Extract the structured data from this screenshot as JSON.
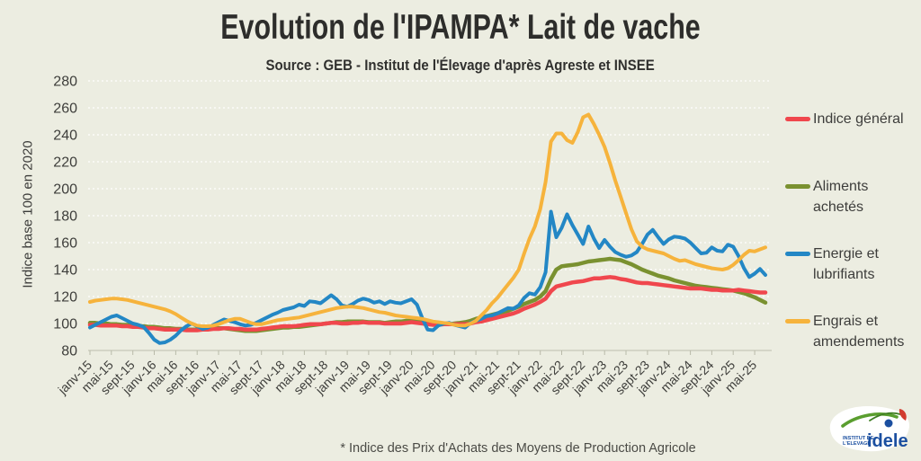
{
  "colors": {
    "background": "#ecede1",
    "text": "#2d2d2b",
    "grid": "#ffffff",
    "axis": "#c6c7b8"
  },
  "header": {
    "title": "Evolution de l'IPAMPA* Lait de vache",
    "subtitle": "Source : GEB - Institut de l'Élevage d'après Agreste et INSEE"
  },
  "footnote": "* Indice des Prix d'Achats des Moyens de Production Agricole",
  "logo": {
    "line1": "INSTITUT DE",
    "line2": "L'ELEVAGE",
    "brand": "idele"
  },
  "chart_data": {
    "type": "line",
    "title": "Evolution de l'IPAMPA* Lait de vache",
    "xlabel": "",
    "ylabel": "Indice base 100 en 2020",
    "ylim": [
      80,
      280
    ],
    "y_ticks": [
      80,
      100,
      120,
      140,
      160,
      180,
      200,
      220,
      240,
      260,
      280
    ],
    "grid": "horizontal-dotted",
    "grid_color": "#ffffff",
    "legend_position": "right",
    "x_resolution": "monthly",
    "x_start": "janv-15",
    "x_end": "juil-25",
    "x_tick_every": 4,
    "x_tick_labels": [
      "janv-15",
      "mai-15",
      "sept-15",
      "janv-16",
      "mai-16",
      "sept-16",
      "janv-17",
      "mai-17",
      "sept-17",
      "janv-18",
      "mai-18",
      "sept-18",
      "janv-19",
      "mai-19",
      "sept-19",
      "janv-20",
      "mai-20",
      "sept-20",
      "janv-21",
      "mai-21",
      "sept-21",
      "janv-22",
      "mai-22",
      "sept-22",
      "janv-23",
      "mai-23",
      "sept-23",
      "janv-24",
      "mai-24",
      "sept-24",
      "janv-25",
      "mai-25"
    ],
    "series": [
      {
        "name": "Indice général",
        "color": "#f0474d",
        "values": [
          99,
          99,
          98.5,
          98.5,
          98.5,
          98.5,
          98,
          98,
          97.5,
          97.5,
          97,
          96.5,
          96.5,
          96,
          95.5,
          95.5,
          95.5,
          95.5,
          95,
          95,
          95,
          95.5,
          95.5,
          96,
          96,
          96.5,
          96.5,
          96,
          96,
          95.5,
          95.5,
          95.5,
          96,
          96.5,
          97,
          97.5,
          98,
          98,
          98,
          98.5,
          99,
          99.5,
          99.5,
          99.5,
          100,
          100.5,
          100.5,
          100,
          100,
          100.5,
          100.5,
          101,
          100.5,
          100.5,
          100.5,
          100,
          100,
          100,
          100,
          100.5,
          101,
          100.5,
          100,
          99.5,
          99,
          99,
          99.5,
          99.5,
          99.5,
          99.5,
          99.5,
          100,
          101,
          101.5,
          102.5,
          103.5,
          104.5,
          105.5,
          106.5,
          107.5,
          109,
          111,
          112.5,
          114,
          116,
          118.5,
          124,
          127.5,
          128.5,
          129.5,
          130.5,
          131,
          131.5,
          132.5,
          133.5,
          133.5,
          134,
          134.5,
          134,
          133,
          132.5,
          131.5,
          130.5,
          130,
          130,
          129.5,
          129,
          128.5,
          128,
          127.5,
          127,
          126.5,
          126,
          126,
          126,
          125.5,
          125,
          125,
          124.5,
          124.5,
          124.5,
          125,
          124.5,
          124,
          123.5,
          123,
          123
        ]
      },
      {
        "name": "Aliments achetés",
        "color": "#7a9130",
        "values": [
          100.5,
          100.5,
          100,
          100,
          99.5,
          99.5,
          99,
          99,
          98.5,
          98,
          98,
          97.5,
          97.5,
          97,
          96.5,
          96.5,
          96,
          96,
          95.5,
          95.5,
          95.5,
          96,
          96,
          96.5,
          96.5,
          96.5,
          96,
          95.5,
          95,
          94.5,
          94.5,
          94.5,
          95,
          95.5,
          96,
          96.5,
          97,
          97,
          97.5,
          97.5,
          98,
          98.5,
          99,
          99.5,
          100,
          100.5,
          101,
          101,
          101.5,
          101.5,
          101.5,
          101.5,
          101,
          101,
          101,
          100.5,
          101,
          101.5,
          101.5,
          102,
          102,
          101.5,
          101,
          100.5,
          100,
          99.5,
          99.5,
          99.5,
          100,
          100.5,
          101,
          102,
          103.5,
          104.5,
          105.5,
          106.5,
          107.5,
          108.5,
          109.5,
          111,
          112.5,
          114.5,
          116,
          117.5,
          120,
          124,
          133,
          140,
          142.5,
          143,
          143.5,
          144,
          145,
          146,
          146.5,
          147,
          147.5,
          148,
          147.5,
          147,
          145.5,
          144,
          142,
          140,
          138.5,
          137,
          135.5,
          134.5,
          133.5,
          132,
          131,
          130,
          129,
          128,
          127.5,
          127,
          126.5,
          126,
          125.5,
          125,
          124.5,
          123.5,
          122.5,
          121,
          119.5,
          117.5,
          115.5
        ]
      },
      {
        "name": "Energie et lubrifiants",
        "color": "#2387c5",
        "values": [
          97,
          99,
          101,
          103,
          105,
          106,
          104,
          102,
          100,
          99,
          97.5,
          93,
          88,
          85.5,
          86,
          88,
          91,
          95,
          98,
          100,
          98,
          96,
          97,
          99,
          101,
          103,
          102,
          101,
          99.5,
          98.5,
          99,
          100.5,
          102.5,
          104.5,
          106.5,
          108,
          110,
          111,
          112,
          114,
          113,
          116.5,
          116,
          115,
          118,
          121,
          118,
          113.5,
          112.5,
          114.5,
          117,
          118.5,
          117.5,
          115.5,
          116.5,
          114.5,
          116.5,
          115.5,
          115,
          116.5,
          118,
          114,
          104,
          95.5,
          95,
          98.5,
          100,
          100.5,
          99,
          98,
          97,
          100.5,
          102,
          103.5,
          105.5,
          106,
          107.5,
          109.5,
          111.5,
          111,
          113.5,
          119,
          122.5,
          121.5,
          127,
          138,
          183,
          164,
          171,
          181,
          173,
          166,
          159,
          172,
          163,
          156,
          162,
          157,
          153,
          151,
          149.5,
          150.5,
          153,
          159,
          166,
          169.5,
          164,
          159,
          162.5,
          164.5,
          164,
          163,
          160,
          156,
          152,
          152.5,
          156.5,
          154,
          153.5,
          158.5,
          157,
          150,
          141,
          134.5,
          137,
          140.5,
          136
        ]
      },
      {
        "name": "Engrais et amendements",
        "color": "#f6b33c",
        "values": [
          116,
          117,
          117.5,
          118,
          118.5,
          118.5,
          118,
          117.5,
          116.5,
          115.5,
          114.5,
          113.5,
          112.5,
          111.5,
          110.5,
          109,
          107,
          104.5,
          102,
          100,
          98.5,
          98,
          98,
          98.5,
          99.5,
          101,
          102.5,
          103.5,
          103.5,
          102,
          100.5,
          99.5,
          99.5,
          100.5,
          101.5,
          102.5,
          103,
          103.5,
          104,
          104.5,
          105.5,
          106.5,
          107.5,
          108.5,
          109.5,
          110.5,
          111.5,
          112,
          112.5,
          112.5,
          112,
          111.5,
          110.5,
          109.5,
          108.5,
          108,
          107,
          106,
          105.5,
          105,
          104.5,
          104,
          103.5,
          102.5,
          101.5,
          101,
          100.5,
          100,
          99,
          98.5,
          98.5,
          100,
          102,
          106,
          110,
          115,
          119,
          124,
          129,
          134,
          140,
          152,
          163,
          172,
          185,
          205,
          235,
          241,
          241,
          236,
          234,
          242,
          253,
          255,
          248,
          240,
          231,
          219,
          206,
          194,
          182,
          170,
          161,
          157,
          155,
          154,
          153,
          152,
          150,
          148,
          146.5,
          147,
          145.5,
          144,
          143,
          142,
          141,
          140.5,
          140,
          141,
          143.5,
          147,
          151,
          154,
          153.5,
          155,
          156.5
        ]
      }
    ]
  }
}
